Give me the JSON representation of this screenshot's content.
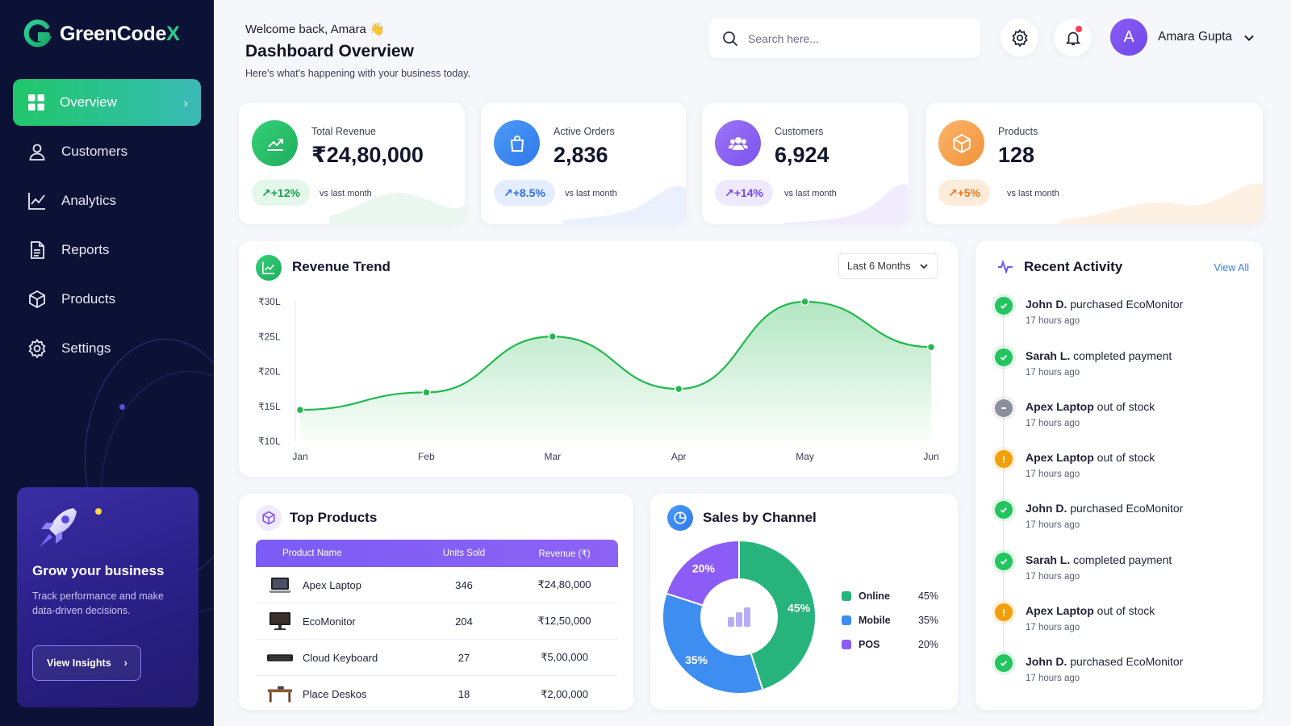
{
  "brand": {
    "name_main": "GreenCode",
    "name_accent": "X"
  },
  "nav": [
    {
      "label": "Overview",
      "icon": "grid-icon",
      "active": true
    },
    {
      "label": "Customers",
      "icon": "user-icon"
    },
    {
      "label": "Analytics",
      "icon": "chart-line-icon"
    },
    {
      "label": "Reports",
      "icon": "document-icon"
    },
    {
      "label": "Products",
      "icon": "box-icon"
    },
    {
      "label": "Settings",
      "icon": "gear-icon"
    }
  ],
  "promo": {
    "title": "Grow your business",
    "text": "Track performance and make data-driven decisions.",
    "button": "View Insights"
  },
  "header": {
    "welcome": "Welcome back, Amara 👋",
    "title": "Dashboard Overview",
    "subtitle": "Here's what's happening with your business today.",
    "search_placeholder": "Search here...",
    "user_initial": "A",
    "user_name": "Amara Gupta"
  },
  "stats": [
    {
      "label": "Total Revenue",
      "value": "₹24,80,000",
      "change": "↗+12%",
      "vs": "vs last month",
      "color": "#22c55e"
    },
    {
      "label": "Active Orders",
      "value": "2,836",
      "change": "↗+8.5%",
      "vs": "vs last month",
      "color": "#3b82f6"
    },
    {
      "label": "Customers",
      "value": "6,924",
      "change": "↗+14%",
      "vs": "vs last month",
      "color": "#8b5cf6"
    },
    {
      "label": "Products",
      "value": "128",
      "change": "↗+5%",
      "vs": "vs last month",
      "color": "#f59e42"
    }
  ],
  "revenue": {
    "title": "Revenue Trend",
    "range": "Last 6 Months"
  },
  "chart_data": [
    {
      "type": "area",
      "title": "Revenue Trend",
      "categories": [
        "Jan",
        "Feb",
        "Mar",
        "Apr",
        "May",
        "Jun"
      ],
      "yticks": [
        "₹30L",
        "₹25L",
        "₹20L",
        "₹15L",
        "₹10L"
      ],
      "ylim": [
        10,
        30
      ],
      "values": [
        14.5,
        17,
        25,
        17.5,
        30,
        23.5
      ],
      "color": "#22b84f",
      "grid": false
    },
    {
      "type": "pie",
      "title": "Sales by Channel",
      "categories": [
        "Online",
        "Mobile",
        "POS"
      ],
      "values": [
        45,
        35,
        20
      ],
      "labels": [
        "45%",
        "35%",
        "20%"
      ],
      "colors": [
        "#27b47c",
        "#3d8ef0",
        "#8b5cf6"
      ],
      "donut": true,
      "legend": "right"
    }
  ],
  "top_products": {
    "title": "Top Products",
    "columns": [
      "Product Name",
      "Units Sold",
      "Revenue (₹)"
    ],
    "rows": [
      {
        "name": "Apex Laptop",
        "units": "346",
        "revenue": "₹24,80,000",
        "icon": "laptop-icon"
      },
      {
        "name": "EcoMonitor",
        "units": "204",
        "revenue": "₹12,50,000",
        "icon": "monitor-icon"
      },
      {
        "name": "Cloud Keyboard",
        "units": "27",
        "revenue": "₹5,00,000",
        "icon": "keyboard-icon"
      },
      {
        "name": "Place Deskos",
        "units": "18",
        "revenue": "₹2,00,000",
        "icon": "desk-icon"
      }
    ]
  },
  "channels": {
    "title": "Sales by Channel",
    "legend": [
      {
        "name": "Online",
        "pct": "45%"
      },
      {
        "name": "Mobile",
        "pct": "35%"
      },
      {
        "name": "POS",
        "pct": "20%"
      }
    ]
  },
  "activity": {
    "title": "Recent Activity",
    "view_all": "View All",
    "items": [
      {
        "who": "John D.",
        "what": " purchased EcoMonitor",
        "time": "17 hours ago",
        "status": "success"
      },
      {
        "who": "Sarah L.",
        "what": " completed payment",
        "time": "17 hours ago",
        "status": "success"
      },
      {
        "who": "Apex Laptop",
        "what": " out of stock",
        "time": "17 hours ago",
        "status": "neutral"
      },
      {
        "who": "Apex Laptop",
        "what": " out of stock",
        "time": "17 hours ago",
        "status": "warning"
      },
      {
        "who": "John D.",
        "what": " purchased EcoMonitor",
        "time": "17 hours ago",
        "status": "success"
      },
      {
        "who": "Sarah L.",
        "what": " completed payment",
        "time": "17 hours ago",
        "status": "success"
      },
      {
        "who": "Apex Laptop",
        "what": " out of stock",
        "time": "17 hours ago",
        "status": "warning"
      },
      {
        "who": "John D.",
        "what": " purchased EcoMonitor",
        "time": "17 hours ago",
        "status": "success"
      }
    ]
  }
}
